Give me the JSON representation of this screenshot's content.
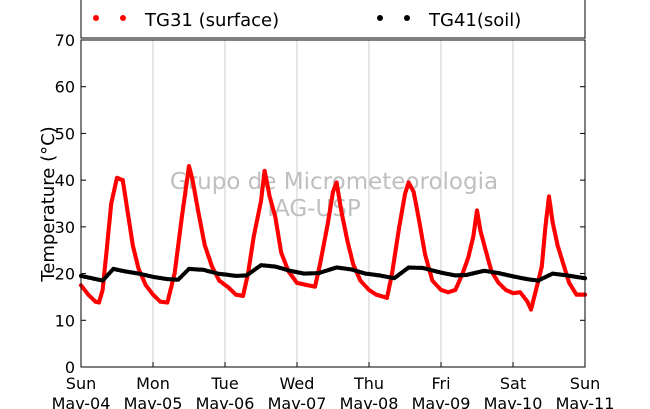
{
  "chart_data": {
    "type": "scatter",
    "ylabel": "Temperature (°C)",
    "ylim": [
      0,
      70
    ],
    "yticks": [
      0,
      10,
      20,
      30,
      40,
      50,
      60,
      70
    ],
    "xlim_days": [
      0,
      7
    ],
    "xticks": [
      {
        "day": 0,
        "line1": "Sun",
        "line2": "Mav-04"
      },
      {
        "day": 1,
        "line1": "Mon",
        "line2": "Mav-05"
      },
      {
        "day": 2,
        "line1": "Tue",
        "line2": "Mav-06"
      },
      {
        "day": 3,
        "line1": "Wed",
        "line2": "Mav-07"
      },
      {
        "day": 4,
        "line1": "Thu",
        "line2": "Mav-08"
      },
      {
        "day": 5,
        "line1": "Fri",
        "line2": "Mav-09"
      },
      {
        "day": 6,
        "line1": "Sat",
        "line2": "Mav-10"
      },
      {
        "day": 7,
        "line1": "Sun",
        "line2": "Mav-11"
      }
    ],
    "grid": "vertical",
    "legend_placement": "top",
    "series": [
      {
        "name": "TG31 (surface)",
        "color": "#ff0000",
        "points": [
          [
            0.0,
            17.5
          ],
          [
            0.1,
            15.5
          ],
          [
            0.2,
            14.0
          ],
          [
            0.25,
            13.8
          ],
          [
            0.3,
            16.5
          ],
          [
            0.35,
            24.0
          ],
          [
            0.42,
            35.0
          ],
          [
            0.5,
            40.5
          ],
          [
            0.58,
            40.0
          ],
          [
            0.65,
            33.0
          ],
          [
            0.72,
            26.0
          ],
          [
            0.8,
            21.0
          ],
          [
            0.9,
            17.5
          ],
          [
            1.0,
            15.5
          ],
          [
            1.1,
            14.0
          ],
          [
            1.2,
            13.8
          ],
          [
            1.3,
            20.0
          ],
          [
            1.4,
            32.0
          ],
          [
            1.5,
            43.0
          ],
          [
            1.55,
            40.0
          ],
          [
            1.62,
            34.0
          ],
          [
            1.72,
            26.0
          ],
          [
            1.82,
            21.5
          ],
          [
            1.92,
            18.5
          ],
          [
            2.05,
            17.0
          ],
          [
            2.15,
            15.5
          ],
          [
            2.25,
            15.2
          ],
          [
            2.32,
            20.0
          ],
          [
            2.4,
            28.0
          ],
          [
            2.5,
            35.5
          ],
          [
            2.55,
            42.0
          ],
          [
            2.62,
            36.5
          ],
          [
            2.7,
            32.0
          ],
          [
            2.78,
            24.5
          ],
          [
            2.88,
            20.5
          ],
          [
            3.0,
            18.0
          ],
          [
            3.15,
            17.5
          ],
          [
            3.25,
            17.2
          ],
          [
            3.32,
            22.0
          ],
          [
            3.42,
            30.0
          ],
          [
            3.5,
            37.5
          ],
          [
            3.55,
            39.5
          ],
          [
            3.62,
            33.0
          ],
          [
            3.7,
            27.0
          ],
          [
            3.78,
            22.0
          ],
          [
            3.88,
            18.5
          ],
          [
            4.0,
            16.5
          ],
          [
            4.1,
            15.5
          ],
          [
            4.25,
            14.8
          ],
          [
            4.32,
            20.0
          ],
          [
            4.42,
            30.0
          ],
          [
            4.5,
            37.0
          ],
          [
            4.55,
            39.5
          ],
          [
            4.62,
            37.5
          ],
          [
            4.7,
            31.0
          ],
          [
            4.78,
            24.0
          ],
          [
            4.88,
            18.5
          ],
          [
            5.0,
            16.5
          ],
          [
            5.1,
            16.0
          ],
          [
            5.2,
            16.5
          ],
          [
            5.3,
            20.0
          ],
          [
            5.38,
            23.5
          ],
          [
            5.45,
            28.0
          ],
          [
            5.5,
            33.5
          ],
          [
            5.55,
            29.0
          ],
          [
            5.62,
            25.0
          ],
          [
            5.7,
            20.5
          ],
          [
            5.8,
            18.0
          ],
          [
            5.9,
            16.5
          ],
          [
            6.0,
            15.8
          ],
          [
            6.1,
            16.0
          ],
          [
            6.2,
            14.0
          ],
          [
            6.25,
            12.3
          ],
          [
            6.32,
            16.5
          ],
          [
            6.4,
            21.5
          ],
          [
            6.45,
            30.0
          ],
          [
            6.5,
            36.5
          ],
          [
            6.55,
            31.0
          ],
          [
            6.62,
            26.0
          ],
          [
            6.7,
            22.0
          ],
          [
            6.78,
            18.0
          ],
          [
            6.88,
            15.5
          ],
          [
            7.0,
            15.5
          ]
        ]
      },
      {
        "name": "TG41(soil)",
        "color": "#000000",
        "points": [
          [
            0.0,
            19.5
          ],
          [
            0.15,
            19.0
          ],
          [
            0.3,
            18.5
          ],
          [
            0.45,
            21.0
          ],
          [
            0.6,
            20.5
          ],
          [
            0.8,
            20.0
          ],
          [
            1.0,
            19.3
          ],
          [
            1.2,
            18.8
          ],
          [
            1.35,
            18.7
          ],
          [
            1.5,
            21.0
          ],
          [
            1.7,
            20.8
          ],
          [
            1.9,
            20.0
          ],
          [
            2.15,
            19.5
          ],
          [
            2.3,
            19.6
          ],
          [
            2.5,
            21.8
          ],
          [
            2.7,
            21.5
          ],
          [
            2.9,
            20.6
          ],
          [
            3.1,
            20.0
          ],
          [
            3.3,
            20.1
          ],
          [
            3.55,
            21.3
          ],
          [
            3.75,
            20.9
          ],
          [
            3.95,
            20.0
          ],
          [
            4.15,
            19.6
          ],
          [
            4.35,
            19.0
          ],
          [
            4.55,
            21.3
          ],
          [
            4.75,
            21.2
          ],
          [
            5.0,
            20.2
          ],
          [
            5.2,
            19.6
          ],
          [
            5.35,
            19.7
          ],
          [
            5.6,
            20.6
          ],
          [
            5.8,
            20.1
          ],
          [
            6.0,
            19.4
          ],
          [
            6.2,
            18.8
          ],
          [
            6.35,
            18.5
          ],
          [
            6.55,
            20.0
          ],
          [
            6.75,
            19.6
          ],
          [
            7.0,
            19.0
          ]
        ]
      }
    ],
    "watermark": [
      "Grupo de Micrometeorologia",
      "IAG-USP"
    ]
  }
}
